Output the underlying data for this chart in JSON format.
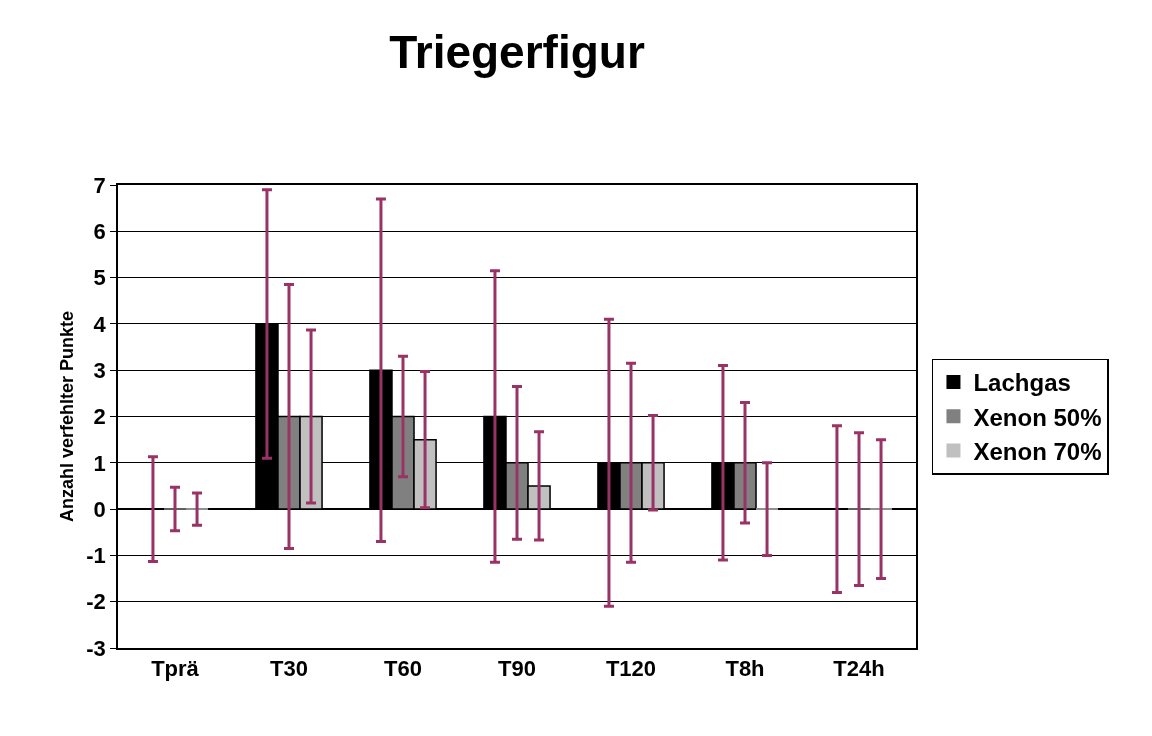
{
  "chart_data": {
    "type": "bar",
    "title": "Triegerfigur",
    "ylabel": "Anzahl verfehlter Punkte",
    "categories": [
      "Tprä",
      "T30",
      "T60",
      "T90",
      "T120",
      "T8h",
      "T24h"
    ],
    "series": [
      {
        "name": "Lachgas",
        "color": "#000000",
        "values": [
          0,
          4,
          3,
          2,
          1,
          1,
          0
        ],
        "errors": [
          1.13,
          2.9,
          3.7,
          3.15,
          3.1,
          2.1,
          1.8
        ]
      },
      {
        "name": "Xenon 50%",
        "color": "#808080",
        "values": [
          0,
          2,
          2,
          1,
          1,
          1,
          0
        ],
        "errors": [
          0.47,
          2.85,
          1.3,
          1.65,
          2.15,
          1.3,
          1.65
        ]
      },
      {
        "name": "Xenon 70%",
        "color": "#c0c0c0",
        "values": [
          0,
          2,
          1.5,
          0.5,
          1,
          0,
          0
        ],
        "errors": [
          0.35,
          1.87,
          1.47,
          1.17,
          1.02,
          1.0,
          1.5
        ]
      }
    ],
    "ylim": [
      -3,
      7
    ],
    "yticks": [
      -3,
      -2,
      -1,
      0,
      1,
      2,
      3,
      4,
      5,
      6,
      7
    ],
    "grid": "y",
    "legend": "right"
  }
}
